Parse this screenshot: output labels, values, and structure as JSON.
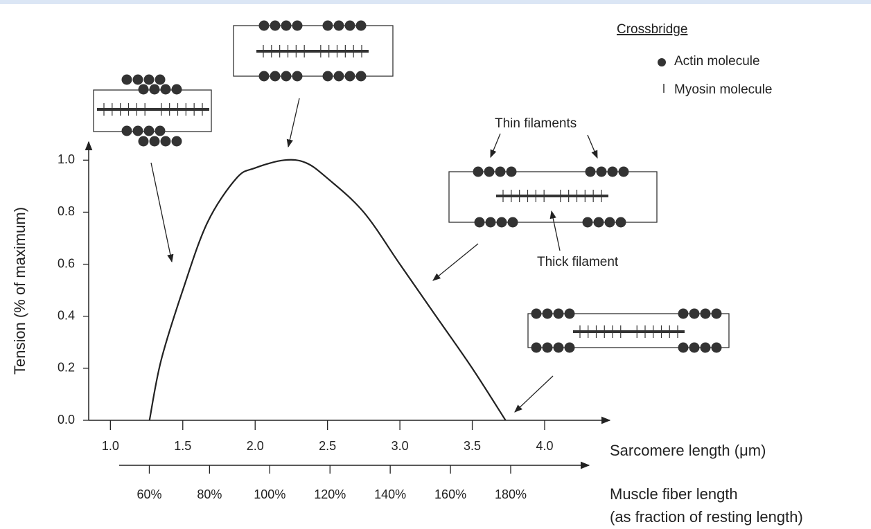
{
  "chart_data": {
    "type": "line",
    "ylabel": "Tension (% of maximum)",
    "xlabel": "Sarcomere length (μm)",
    "x2label": [
      "Muscle fiber length",
      "(as fraction of resting length)"
    ],
    "x": [
      1.27,
      1.35,
      1.5,
      1.67,
      1.87,
      2.0,
      2.2,
      2.35,
      2.5,
      2.75,
      3.0,
      3.25,
      3.5,
      3.73
    ],
    "values": [
      0,
      0.23,
      0.5,
      0.76,
      0.93,
      0.97,
      1.0,
      0.99,
      0.93,
      0.8,
      0.6,
      0.4,
      0.2,
      0
    ],
    "color": "#222222",
    "xlim": [
      0.85,
      4.45
    ],
    "ylim": [
      0,
      1.07
    ],
    "xticks": [
      {
        "value": 1,
        "label": "1.0"
      },
      1.5,
      {
        "value": 2,
        "label": "2.0"
      },
      2.5,
      {
        "value": 3,
        "label": "3.0"
      },
      3.5,
      {
        "value": 4,
        "label": "4.0"
      }
    ],
    "yticks": [
      {
        "value": 0,
        "label": "0.0"
      },
      0.2,
      0.4,
      0.6,
      0.8,
      {
        "value": 1,
        "label": "1.0"
      }
    ],
    "x2lim": [
      50,
      206
    ],
    "x2ticks": [
      {
        "value": 60,
        "label": "60%"
      },
      {
        "value": 80,
        "label": "80%"
      },
      {
        "value": 100,
        "label": "100%"
      },
      {
        "value": 120,
        "label": "120%"
      },
      {
        "value": 140,
        "label": "140%"
      },
      {
        "value": 160,
        "label": "160%"
      },
      {
        "value": 180,
        "label": "180%"
      }
    ],
    "legend": {
      "title": "Crossbridge",
      "items": [
        "Actin molecule",
        "Myosin molecule"
      ]
    },
    "annotations": [
      "Thin filaments",
      "Thick filament"
    ]
  }
}
